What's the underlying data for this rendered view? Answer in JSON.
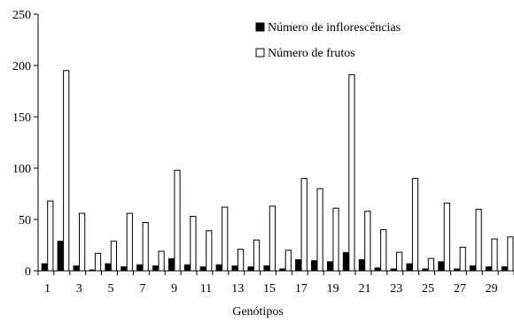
{
  "chart_data": {
    "type": "bar",
    "title": "",
    "xlabel": "Genótipos",
    "ylabel": "",
    "ylim": [
      0,
      250
    ],
    "yticks": [
      0,
      50,
      100,
      150,
      200,
      250
    ],
    "xticks": [
      "1",
      "3",
      "5",
      "7",
      "9",
      "11",
      "13",
      "15",
      "17",
      "19",
      "21",
      "23",
      "25",
      "27",
      "29"
    ],
    "categories": [
      "1",
      "2",
      "3",
      "4",
      "5",
      "6",
      "7",
      "8",
      "9",
      "10",
      "11",
      "12",
      "13",
      "14",
      "15",
      "16",
      "17",
      "18",
      "19",
      "20",
      "21",
      "22",
      "23",
      "24",
      "25",
      "26",
      "27",
      "28",
      "29",
      "30"
    ],
    "grid": false,
    "legend_position": "top-right",
    "series": [
      {
        "name": "Número de inflorescências",
        "color": "#000000",
        "fill": "solid",
        "values": [
          7,
          29,
          5,
          1,
          7,
          4,
          6,
          5,
          12,
          6,
          4,
          6,
          5,
          4,
          5,
          2,
          11,
          10,
          9,
          18,
          11,
          3,
          2,
          7,
          2,
          9,
          2,
          5,
          4,
          4
        ]
      },
      {
        "name": "Número de frutos",
        "color": "#ffffff",
        "fill": "outline",
        "values": [
          68,
          195,
          56,
          17,
          29,
          56,
          47,
          19,
          98,
          53,
          39,
          62,
          21,
          30,
          63,
          20,
          90,
          80,
          61,
          191,
          58,
          40,
          18,
          90,
          12,
          66,
          23,
          60,
          31,
          33
        ]
      }
    ]
  }
}
